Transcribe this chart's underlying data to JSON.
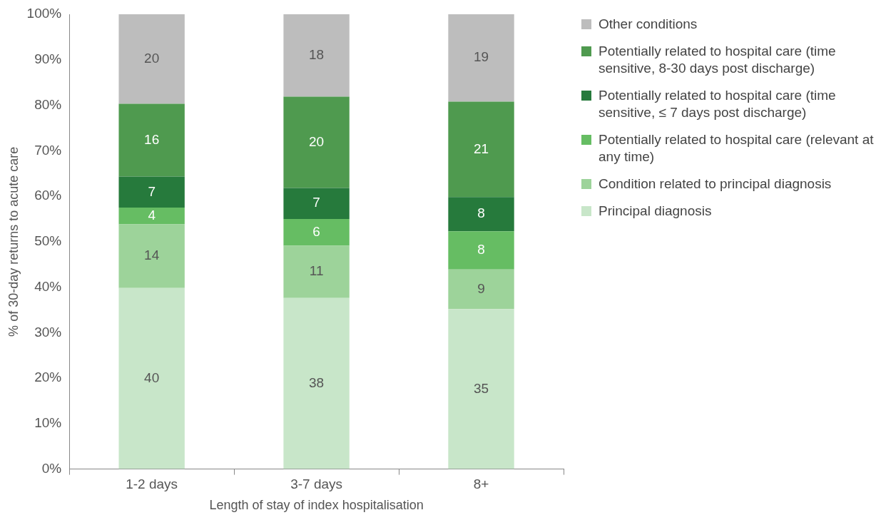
{
  "chart_data": {
    "type": "bar",
    "stacked": true,
    "xlabel": "Length of stay of index hospitalisation",
    "ylabel": "% of 30-day returns to acute care",
    "categories": [
      "1-2 days",
      "3-7 days",
      "8+"
    ],
    "ylim": [
      0,
      100
    ],
    "yticks": [
      {
        "value": 0,
        "label": "0%"
      },
      {
        "value": 10,
        "label": "10%"
      },
      {
        "value": 20,
        "label": "20%"
      },
      {
        "value": 30,
        "label": "30%"
      },
      {
        "value": 40,
        "label": "40%"
      },
      {
        "value": 50,
        "label": "50%"
      },
      {
        "value": 60,
        "label": "60%"
      },
      {
        "value": 70,
        "label": "70%"
      },
      {
        "value": 80,
        "label": "80%"
      },
      {
        "value": 90,
        "label": "90%"
      },
      {
        "value": 100,
        "label": "100%"
      }
    ],
    "grid": false,
    "legend": "right",
    "series": [
      {
        "name": "Principal diagnosis",
        "color": "#c8e6c9",
        "values": [
          39.8,
          37.6,
          35.2
        ],
        "value_labels": [
          "40",
          "38",
          "35"
        ]
      },
      {
        "name": "Condition related to principal diagnosis",
        "color": "#9dd39a",
        "values": [
          14,
          11.5,
          8.7
        ],
        "value_labels": [
          "14",
          "11",
          "9"
        ]
      },
      {
        "name": "Potentially related to hospital care (relevant at any time)",
        "color": "#66bd63",
        "values": [
          3.7,
          5.9,
          8.4
        ],
        "value_labels": [
          "4",
          "6",
          "8"
        ]
      },
      {
        "name": "Potentially related to hospital care (time sensitive, ≤ 7 days post discharge)",
        "color": "#267a3c",
        "values": [
          6.8,
          6.8,
          7.5
        ],
        "value_labels": [
          "7",
          "7",
          "8"
        ]
      },
      {
        "name": "Potentially related to hospital care (time sensitive, 8-30 days post discharge)",
        "color": "#4f9a4f",
        "values": [
          16,
          20.1,
          21
        ],
        "value_labels": [
          "16",
          "20",
          "21"
        ]
      },
      {
        "name": "Other conditions",
        "color": "#bdbdbd",
        "values": [
          19.7,
          18.1,
          19.2
        ],
        "value_labels": [
          "20",
          "18",
          "19"
        ]
      }
    ]
  }
}
